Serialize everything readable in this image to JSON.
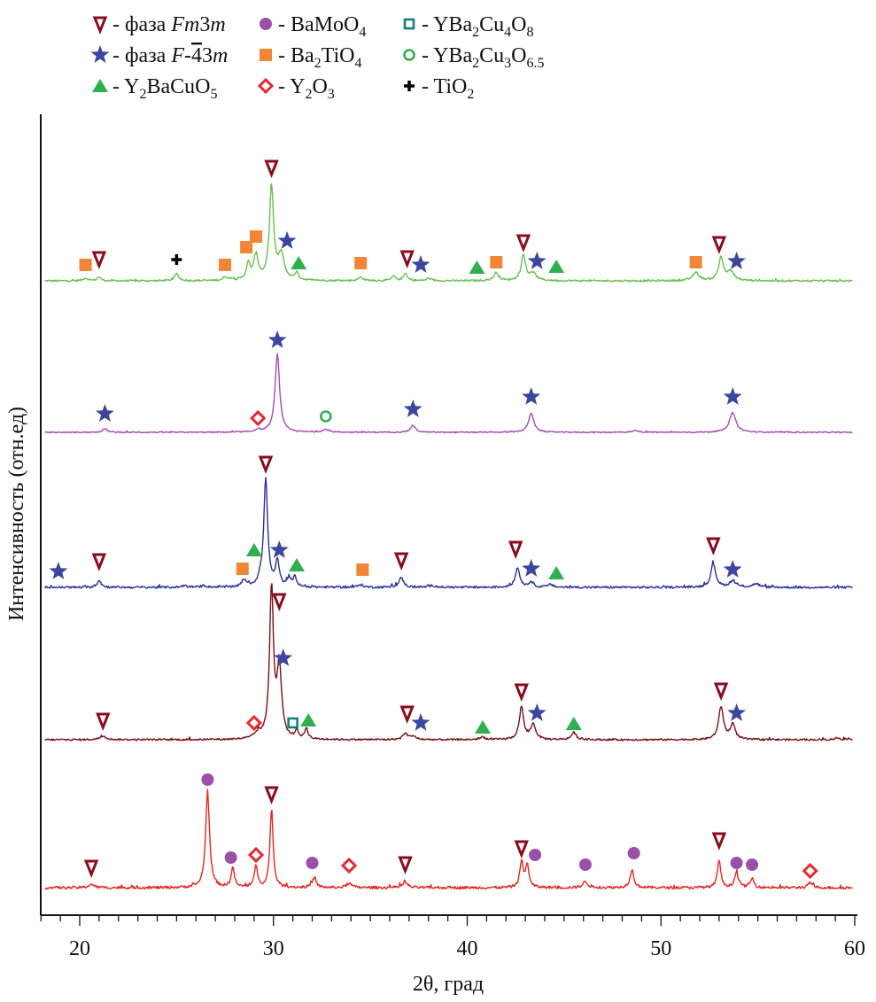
{
  "chart_data": {
    "type": "line",
    "title": "",
    "xlabel": "2θ, град",
    "ylabel": "Интенсивность (отн.ед)",
    "xlim": [
      18,
      60
    ],
    "xticks": [
      20,
      30,
      40,
      50,
      60
    ],
    "minor_tick_step": 1,
    "grid": false,
    "legend_placement": "top",
    "legend": [
      {
        "marker": "tri-down-open",
        "color": "#8b0a1e",
        "label_parts": [
          [
            "- фаза ",
            "n"
          ],
          [
            "Fm",
            "i"
          ],
          [
            "3",
            "n"
          ],
          [
            "m",
            "i"
          ]
        ]
      },
      {
        "marker": "star",
        "color": "#3c46a0",
        "label_parts": [
          [
            "- фаза ",
            "n"
          ],
          [
            "F",
            "i"
          ],
          [
            "-",
            "n"
          ],
          [
            "4",
            "bar"
          ],
          [
            "3",
            "n"
          ],
          [
            "m",
            "i"
          ]
        ]
      },
      {
        "marker": "tri-up",
        "color": "#2eb04e",
        "label_parts": [
          [
            "- Y",
            "n"
          ],
          [
            "2",
            "sub"
          ],
          [
            "BaCuO",
            "n"
          ],
          [
            "5",
            "sub"
          ]
        ]
      },
      {
        "marker": "circle",
        "color": "#9b4fa9",
        "label_parts": [
          [
            "- BaMoO",
            "n"
          ],
          [
            "4",
            "sub"
          ]
        ]
      },
      {
        "marker": "square",
        "color": "#f28536",
        "label_parts": [
          [
            "- Ba",
            "n"
          ],
          [
            "2",
            "sub"
          ],
          [
            "TiO",
            "n"
          ],
          [
            "4",
            "sub"
          ]
        ]
      },
      {
        "marker": "diamond-open",
        "color": "#e8282d",
        "label_parts": [
          [
            "- Y",
            "n"
          ],
          [
            "2",
            "sub"
          ],
          [
            "O",
            "n"
          ],
          [
            "3",
            "sub"
          ]
        ]
      },
      {
        "marker": "square-open",
        "color": "#157f78",
        "label_parts": [
          [
            "- YBa",
            "n"
          ],
          [
            "2",
            "sub"
          ],
          [
            "Cu",
            "n"
          ],
          [
            "4",
            "sub"
          ],
          [
            "O",
            "n"
          ],
          [
            "8",
            "sub"
          ]
        ]
      },
      {
        "marker": "circle-open",
        "color": "#2eb04e",
        "label_parts": [
          [
            "- YBa",
            "n"
          ],
          [
            "2",
            "sub"
          ],
          [
            "Cu",
            "n"
          ],
          [
            "3",
            "sub"
          ],
          [
            "O",
            "n"
          ],
          [
            "6.5",
            "sub"
          ]
        ]
      },
      {
        "marker": "plus",
        "color": "#000000",
        "label_parts": [
          [
            "- TiO",
            "n"
          ],
          [
            "2",
            "sub"
          ]
        ]
      }
    ],
    "series": [
      {
        "name": "pattern-1 (top)",
        "color": "#66c24e",
        "offset": 5,
        "noise": 1.0,
        "peaks": [
          [
            20.3,
            3,
            0.15
          ],
          [
            21.0,
            4,
            0.12
          ],
          [
            25.0,
            8,
            0.12
          ],
          [
            27.5,
            4,
            0.12
          ],
          [
            27.8,
            2,
            0.1
          ],
          [
            28.7,
            18,
            0.12
          ],
          [
            29.1,
            28,
            0.14
          ],
          [
            29.9,
            105,
            0.13
          ],
          [
            30.4,
            28,
            0.18
          ],
          [
            31.2,
            8,
            0.12
          ],
          [
            34.5,
            4,
            0.15
          ],
          [
            36.2,
            5,
            0.12
          ],
          [
            36.8,
            8,
            0.12
          ],
          [
            38.0,
            3,
            0.12
          ],
          [
            41.5,
            9,
            0.15
          ],
          [
            42.9,
            28,
            0.14
          ],
          [
            43.4,
            8,
            0.2
          ],
          [
            51.8,
            9,
            0.2
          ],
          [
            53.1,
            26,
            0.15
          ],
          [
            53.6,
            10,
            0.2
          ]
        ],
        "markers": [
          {
            "type": "square",
            "x": 20.3,
            "y": 18
          },
          {
            "type": "tri-down-open",
            "x": 21.0,
            "y": 25
          },
          {
            "type": "plus",
            "x": 25.0,
            "y": 24
          },
          {
            "type": "square",
            "x": 27.5,
            "y": 18
          },
          {
            "type": "square",
            "x": 28.6,
            "y": 38
          },
          {
            "type": "square",
            "x": 29.1,
            "y": 50
          },
          {
            "type": "tri-down-open",
            "x": 29.9,
            "y": 128
          },
          {
            "type": "star",
            "x": 30.7,
            "y": 45
          },
          {
            "type": "tri-up",
            "x": 31.3,
            "y": 20
          },
          {
            "type": "square",
            "x": 34.5,
            "y": 20
          },
          {
            "type": "tri-down-open",
            "x": 36.9,
            "y": 26
          },
          {
            "type": "star",
            "x": 37.6,
            "y": 18
          },
          {
            "type": "tri-up",
            "x": 40.5,
            "y": 15
          },
          {
            "type": "square",
            "x": 41.5,
            "y": 21
          },
          {
            "type": "tri-down-open",
            "x": 42.9,
            "y": 44
          },
          {
            "type": "star",
            "x": 43.6,
            "y": 22
          },
          {
            "type": "tri-up",
            "x": 44.6,
            "y": 16
          },
          {
            "type": "square",
            "x": 51.8,
            "y": 21
          },
          {
            "type": "tri-down-open",
            "x": 53.0,
            "y": 42
          },
          {
            "type": "star",
            "x": 53.9,
            "y": 22
          }
        ]
      },
      {
        "name": "pattern-2",
        "color": "#a64ab2",
        "offset": 4,
        "noise": 0.6,
        "peaks": [
          [
            21.3,
            4,
            0.15
          ],
          [
            29.2,
            3,
            0.15
          ],
          [
            30.2,
            88,
            0.14
          ],
          [
            32.7,
            3,
            0.2
          ],
          [
            37.2,
            8,
            0.15
          ],
          [
            43.3,
            22,
            0.16
          ],
          [
            48.7,
            2,
            0.2
          ],
          [
            53.7,
            22,
            0.2
          ]
        ],
        "markers": [
          {
            "type": "star",
            "x": 21.3,
            "y": 21
          },
          {
            "type": "diamond-open",
            "x": 29.2,
            "y": 16
          },
          {
            "type": "star",
            "x": 30.2,
            "y": 104
          },
          {
            "type": "circle-open",
            "x": 32.7,
            "y": 18
          },
          {
            "type": "star",
            "x": 37.2,
            "y": 26
          },
          {
            "type": "star",
            "x": 43.3,
            "y": 40
          },
          {
            "type": "star",
            "x": 53.7,
            "y": 40
          }
        ]
      },
      {
        "name": "pattern-3",
        "color": "#2a2f9a",
        "offset": 3,
        "noise": 1.2,
        "peaks": [
          [
            21.0,
            8,
            0.12
          ],
          [
            25.4,
            2,
            0.15
          ],
          [
            26.4,
            2,
            0.15
          ],
          [
            28.5,
            8,
            0.15
          ],
          [
            29.3,
            6,
            0.12
          ],
          [
            29.6,
            122,
            0.12
          ],
          [
            30.2,
            28,
            0.12
          ],
          [
            30.8,
            10,
            0.1
          ],
          [
            31.1,
            12,
            0.1
          ],
          [
            34.5,
            3,
            0.15
          ],
          [
            36.6,
            11,
            0.14
          ],
          [
            38.2,
            2,
            0.2
          ],
          [
            42.6,
            22,
            0.14
          ],
          [
            43.3,
            6,
            0.15
          ],
          [
            44.3,
            3,
            0.15
          ],
          [
            52.7,
            27,
            0.15
          ],
          [
            53.7,
            7,
            0.2
          ],
          [
            54.9,
            4,
            0.2
          ]
        ],
        "markers": [
          {
            "type": "star",
            "x": 18.9,
            "y": 18
          },
          {
            "type": "tri-down-open",
            "x": 21.0,
            "y": 30
          },
          {
            "type": "square",
            "x": 28.4,
            "y": 21
          },
          {
            "type": "tri-up",
            "x": 29.0,
            "y": 42
          },
          {
            "type": "tri-down-open",
            "x": 29.6,
            "y": 140
          },
          {
            "type": "star",
            "x": 30.3,
            "y": 42
          },
          {
            "type": "tri-up",
            "x": 31.2,
            "y": 25
          },
          {
            "type": "square",
            "x": 34.6,
            "y": 20
          },
          {
            "type": "tri-down-open",
            "x": 36.6,
            "y": 31
          },
          {
            "type": "tri-down-open",
            "x": 42.5,
            "y": 44
          },
          {
            "type": "star",
            "x": 43.3,
            "y": 21
          },
          {
            "type": "tri-up",
            "x": 44.6,
            "y": 16
          },
          {
            "type": "tri-down-open",
            "x": 52.7,
            "y": 48
          },
          {
            "type": "star",
            "x": 53.7,
            "y": 20
          }
        ]
      },
      {
        "name": "pattern-4",
        "color": "#7a0e1a",
        "offset": 2,
        "noise": 1.0,
        "peaks": [
          [
            21.2,
            4,
            0.2
          ],
          [
            29.2,
            6,
            0.2
          ],
          [
            29.9,
            170,
            0.12
          ],
          [
            30.3,
            80,
            0.14
          ],
          [
            31.2,
            9,
            0.1
          ],
          [
            31.7,
            12,
            0.1
          ],
          [
            36.8,
            7,
            0.15
          ],
          [
            37.2,
            4,
            0.15
          ],
          [
            40.8,
            3,
            0.15
          ],
          [
            42.8,
            37,
            0.13
          ],
          [
            43.4,
            17,
            0.16
          ],
          [
            45.5,
            8,
            0.15
          ],
          [
            53.1,
            37,
            0.15
          ],
          [
            53.7,
            17,
            0.15
          ],
          [
            59.1,
            2,
            0.2
          ]
        ],
        "markers": [
          {
            "type": "tri-down-open",
            "x": 21.2,
            "y": 22
          },
          {
            "type": "diamond-open",
            "x": 29.0,
            "y": 19
          },
          {
            "type": "tri-down-open",
            "x": 30.3,
            "y": 157
          },
          {
            "type": "star",
            "x": 30.5,
            "y": 92
          },
          {
            "type": "square-open",
            "x": 31.0,
            "y": 19
          },
          {
            "type": "tri-up",
            "x": 31.8,
            "y": 22
          },
          {
            "type": "tri-down-open",
            "x": 36.9,
            "y": 30
          },
          {
            "type": "star",
            "x": 37.6,
            "y": 19
          },
          {
            "type": "tri-up",
            "x": 40.8,
            "y": 14
          },
          {
            "type": "tri-down-open",
            "x": 42.8,
            "y": 55
          },
          {
            "type": "star",
            "x": 43.6,
            "y": 30
          },
          {
            "type": "tri-up",
            "x": 45.5,
            "y": 18
          },
          {
            "type": "tri-down-open",
            "x": 53.1,
            "y": 56
          },
          {
            "type": "star",
            "x": 53.9,
            "y": 30
          }
        ]
      },
      {
        "name": "pattern-5 (bottom)",
        "color": "#e5271f",
        "offset": 1,
        "noise": 1.5,
        "peaks": [
          [
            20.6,
            4,
            0.15
          ],
          [
            26.6,
            108,
            0.12
          ],
          [
            27.9,
            22,
            0.1
          ],
          [
            29.1,
            24,
            0.1
          ],
          [
            29.9,
            87,
            0.1
          ],
          [
            32.1,
            11,
            0.12
          ],
          [
            33.9,
            5,
            0.15
          ],
          [
            36.8,
            6,
            0.15
          ],
          [
            42.8,
            30,
            0.1
          ],
          [
            43.1,
            26,
            0.1
          ],
          [
            46.1,
            7,
            0.15
          ],
          [
            48.5,
            20,
            0.12
          ],
          [
            53.0,
            32,
            0.1
          ],
          [
            53.9,
            17,
            0.12
          ],
          [
            54.7,
            10,
            0.12
          ],
          [
            57.7,
            6,
            0.12
          ]
        ],
        "markers": [
          {
            "type": "tri-down-open",
            "x": 20.6,
            "y": 23
          },
          {
            "type": "circle",
            "x": 26.6,
            "y": 122
          },
          {
            "type": "circle",
            "x": 27.8,
            "y": 34
          },
          {
            "type": "diamond-open",
            "x": 29.1,
            "y": 37
          },
          {
            "type": "tri-down-open",
            "x": 29.9,
            "y": 106
          },
          {
            "type": "circle",
            "x": 32.0,
            "y": 28
          },
          {
            "type": "diamond-open",
            "x": 33.9,
            "y": 25
          },
          {
            "type": "tri-down-open",
            "x": 36.8,
            "y": 27
          },
          {
            "type": "tri-down-open",
            "x": 42.8,
            "y": 45
          },
          {
            "type": "circle",
            "x": 43.5,
            "y": 37
          },
          {
            "type": "circle",
            "x": 46.1,
            "y": 26
          },
          {
            "type": "circle",
            "x": 48.6,
            "y": 39
          },
          {
            "type": "tri-down-open",
            "x": 53.0,
            "y": 54
          },
          {
            "type": "circle",
            "x": 53.9,
            "y": 28
          },
          {
            "type": "circle",
            "x": 54.7,
            "y": 26
          },
          {
            "type": "diamond-open",
            "x": 57.7,
            "y": 19
          }
        ]
      }
    ]
  }
}
